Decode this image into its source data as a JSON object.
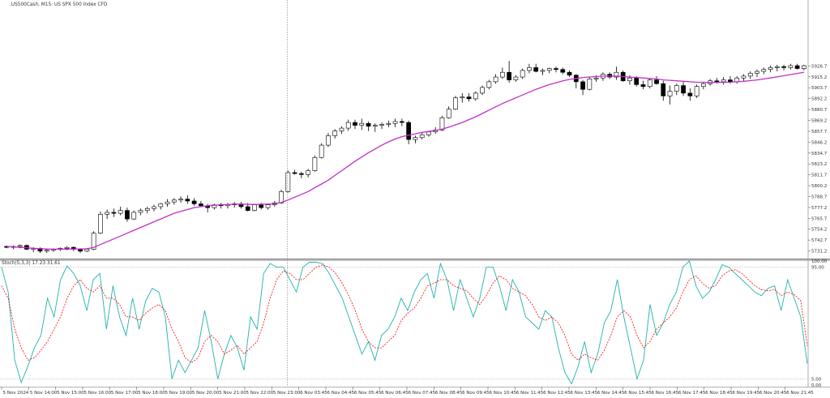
{
  "header": {
    "symbol_label": ".US500Cash, M15:  US SPX 500 Index CFD",
    "indicator_label": "Stoch(5,3,3) 17.23 31.61"
  },
  "colors": {
    "bull_fill": "#ffffff",
    "bear_fill": "#000000",
    "candle_border": "#000000",
    "ma_line": "#c030c8",
    "stoch_main": "#20b2aa",
    "stoch_signal": "#ff0000",
    "grid_sep": "#808080"
  },
  "chart_data": [
    {
      "type": "candlestick",
      "title": ".US500Cash, M15:  US SPX 500 Index CFD",
      "ylim": [
        5724,
        5993
      ],
      "y_ticks": [
        "5926.7",
        "5915.2",
        "5903.7",
        "5892.2",
        "5880.7",
        "5869.2",
        "5857.7",
        "5846.2",
        "5834.7",
        "5823.2",
        "5811.7",
        "5800.2",
        "5788.7",
        "5777.2",
        "5765.7",
        "5754.2",
        "5742.7",
        "5731.2"
      ],
      "x_ticks": [
        "5 Nov 2024",
        "5 Nov 14:00",
        "5 Nov 15:00",
        "5 Nov 16:00",
        "5 Nov 17:00",
        "5 Nov 18:00",
        "5 Nov 19:00",
        "5 Nov 20:00",
        "5 Nov 21:00",
        "5 Nov 22:00",
        "5 Nov 23:00",
        "6 Nov 03:45",
        "6 Nov 04:45",
        "6 Nov 05:45",
        "6 Nov 06:45",
        "6 Nov 07:45",
        "6 Nov 08:45",
        "6 Nov 09:45",
        "6 Nov 10:45",
        "6 Nov 11:45",
        "6 Nov 12:45",
        "6 Nov 13:45",
        "6 Nov 14:45",
        "6 Nov 15:45",
        "6 Nov 16:45",
        "6 Nov 17:45",
        "6 Nov 18:45",
        "6 Nov 19:45",
        "6 Nov 20:45",
        "6 Nov 21:45"
      ],
      "candles": [
        [
          5736,
          5737,
          5734,
          5735
        ],
        [
          5735,
          5737,
          5733,
          5736
        ],
        [
          5736,
          5738,
          5734,
          5737
        ],
        [
          5737,
          5738,
          5732,
          5733
        ],
        [
          5733,
          5735,
          5730,
          5734
        ],
        [
          5734,
          5735,
          5729,
          5731
        ],
        [
          5731,
          5733,
          5729,
          5732
        ],
        [
          5732,
          5734,
          5730,
          5733
        ],
        [
          5733,
          5735,
          5731,
          5734
        ],
        [
          5734,
          5736,
          5732,
          5735
        ],
        [
          5735,
          5736,
          5731,
          5733
        ],
        [
          5733,
          5734,
          5729,
          5731
        ],
        [
          5731,
          5734,
          5730,
          5733
        ],
        [
          5733,
          5752,
          5732,
          5750
        ],
        [
          5750,
          5773,
          5749,
          5770
        ],
        [
          5770,
          5775,
          5765,
          5772
        ],
        [
          5772,
          5776,
          5767,
          5771
        ],
        [
          5771,
          5778,
          5769,
          5774
        ],
        [
          5774,
          5777,
          5762,
          5765
        ],
        [
          5765,
          5774,
          5764,
          5772
        ],
        [
          5772,
          5776,
          5769,
          5774
        ],
        [
          5774,
          5778,
          5771,
          5776
        ],
        [
          5776,
          5780,
          5773,
          5778
        ],
        [
          5778,
          5782,
          5775,
          5781
        ],
        [
          5781,
          5786,
          5778,
          5783
        ],
        [
          5783,
          5787,
          5780,
          5785
        ],
        [
          5785,
          5789,
          5782,
          5786
        ],
        [
          5786,
          5790,
          5781,
          5784
        ],
        [
          5784,
          5787,
          5779,
          5781
        ],
        [
          5781,
          5784,
          5778,
          5779
        ],
        [
          5779,
          5781,
          5772,
          5777
        ],
        [
          5777,
          5781,
          5775,
          5780
        ],
        [
          5780,
          5782,
          5776,
          5779
        ],
        [
          5779,
          5782,
          5776,
          5780
        ],
        [
          5780,
          5783,
          5777,
          5781
        ],
        [
          5781,
          5783,
          5776,
          5778
        ],
        [
          5778,
          5782,
          5773,
          5774
        ],
        [
          5774,
          5781,
          5773,
          5780
        ],
        [
          5780,
          5782,
          5775,
          5777
        ],
        [
          5777,
          5781,
          5775,
          5780
        ],
        [
          5780,
          5784,
          5778,
          5782
        ],
        [
          5782,
          5796,
          5781,
          5794
        ],
        [
          5794,
          5816,
          5793,
          5814
        ],
        [
          5814,
          5817,
          5812,
          5813
        ],
        [
          5813,
          5815,
          5808,
          5812
        ],
        [
          5812,
          5818,
          5809,
          5816
        ],
        [
          5816,
          5832,
          5815,
          5830
        ],
        [
          5830,
          5845,
          5829,
          5843
        ],
        [
          5843,
          5856,
          5841,
          5853
        ],
        [
          5853,
          5860,
          5850,
          5858
        ],
        [
          5858,
          5863,
          5855,
          5861
        ],
        [
          5861,
          5870,
          5858,
          5867
        ],
        [
          5867,
          5870,
          5860,
          5864
        ],
        [
          5864,
          5871,
          5859,
          5866
        ],
        [
          5866,
          5868,
          5858,
          5863
        ],
        [
          5863,
          5866,
          5857,
          5864
        ],
        [
          5864,
          5867,
          5860,
          5865
        ],
        [
          5865,
          5869,
          5862,
          5866
        ],
        [
          5866,
          5871,
          5862,
          5868
        ],
        [
          5868,
          5871,
          5863,
          5867
        ],
        [
          5867,
          5869,
          5844,
          5849
        ],
        [
          5849,
          5853,
          5845,
          5851
        ],
        [
          5851,
          5856,
          5849,
          5854
        ],
        [
          5854,
          5858,
          5852,
          5857
        ],
        [
          5857,
          5862,
          5855,
          5859
        ],
        [
          5859,
          5874,
          5858,
          5872
        ],
        [
          5872,
          5884,
          5871,
          5881
        ],
        [
          5881,
          5895,
          5880,
          5893
        ],
        [
          5893,
          5898,
          5888,
          5894
        ],
        [
          5894,
          5898,
          5889,
          5892
        ],
        [
          5892,
          5900,
          5890,
          5898
        ],
        [
          5898,
          5906,
          5896,
          5904
        ],
        [
          5904,
          5912,
          5902,
          5910
        ],
        [
          5910,
          5918,
          5908,
          5915
        ],
        [
          5915,
          5925,
          5913,
          5920
        ],
        [
          5920,
          5932,
          5909,
          5912
        ],
        [
          5912,
          5917,
          5910,
          5915
        ],
        [
          5915,
          5924,
          5913,
          5922
        ],
        [
          5922,
          5929,
          5919,
          5925
        ],
        [
          5925,
          5929,
          5920,
          5921
        ],
        [
          5921,
          5924,
          5917,
          5922
        ],
        [
          5922,
          5925,
          5919,
          5924
        ],
        [
          5924,
          5926,
          5920,
          5923
        ],
        [
          5923,
          5925,
          5918,
          5920
        ],
        [
          5920,
          5922,
          5915,
          5917
        ],
        [
          5917,
          5918,
          5903,
          5910
        ],
        [
          5910,
          5912,
          5896,
          5902
        ],
        [
          5902,
          5915,
          5901,
          5913
        ],
        [
          5913,
          5917,
          5910,
          5914
        ],
        [
          5914,
          5920,
          5911,
          5918
        ],
        [
          5918,
          5920,
          5913,
          5915
        ],
        [
          5915,
          5926,
          5912,
          5920
        ],
        [
          5920,
          5922,
          5910,
          5911
        ],
        [
          5911,
          5917,
          5907,
          5914
        ],
        [
          5914,
          5916,
          5905,
          5907
        ],
        [
          5907,
          5911,
          5902,
          5905
        ],
        [
          5905,
          5913,
          5903,
          5912
        ],
        [
          5912,
          5916,
          5907,
          5908
        ],
        [
          5908,
          5911,
          5890,
          5895
        ],
        [
          5895,
          5906,
          5886,
          5900
        ],
        [
          5900,
          5908,
          5896,
          5906
        ],
        [
          5906,
          5910,
          5895,
          5898
        ],
        [
          5898,
          5903,
          5890,
          5895
        ],
        [
          5895,
          5907,
          5893,
          5905
        ],
        [
          5905,
          5910,
          5902,
          5908
        ],
        [
          5908,
          5913,
          5906,
          5911
        ],
        [
          5911,
          5914,
          5908,
          5910
        ],
        [
          5910,
          5915,
          5907,
          5912
        ],
        [
          5912,
          5916,
          5908,
          5910
        ],
        [
          5910,
          5916,
          5908,
          5914
        ],
        [
          5914,
          5918,
          5911,
          5916
        ],
        [
          5916,
          5921,
          5913,
          5919
        ],
        [
          5919,
          5923,
          5915,
          5921
        ],
        [
          5921,
          5925,
          5918,
          5923
        ],
        [
          5923,
          5927,
          5920,
          5925
        ],
        [
          5925,
          5928,
          5921,
          5926
        ],
        [
          5926,
          5928,
          5922,
          5925
        ],
        [
          5925,
          5929,
          5923,
          5927
        ],
        [
          5927,
          5929,
          5923,
          5924
        ],
        [
          5924,
          5928,
          5922,
          5927
        ]
      ],
      "ma": [
        5736,
        5735.5,
        5735,
        5734.5,
        5734,
        5733.6,
        5733.3,
        5733.1,
        5733.1,
        5733.2,
        5733.3,
        5733.3,
        5733.5,
        5735,
        5738,
        5741,
        5744,
        5747,
        5750,
        5753,
        5756,
        5759,
        5762,
        5765,
        5768,
        5771,
        5773,
        5775,
        5777,
        5778,
        5779,
        5779.5,
        5780,
        5780.2,
        5780.5,
        5780.6,
        5780.4,
        5780.4,
        5780.5,
        5780.7,
        5781,
        5782.5,
        5785,
        5788,
        5791,
        5794,
        5798,
        5802,
        5806,
        5811,
        5816,
        5821,
        5826,
        5830.5,
        5835,
        5839,
        5843,
        5846.5,
        5849.5,
        5852,
        5853.5,
        5855,
        5856.5,
        5857.5,
        5858.5,
        5860,
        5862,
        5864.5,
        5867,
        5870,
        5873,
        5876.5,
        5880,
        5883.5,
        5887,
        5890,
        5893,
        5896,
        5899,
        5902,
        5904.5,
        5907,
        5909,
        5911,
        5912.5,
        5913.5,
        5914.5,
        5915,
        5915.5,
        5916,
        5916,
        5916,
        5915.5,
        5915,
        5914.5,
        5914,
        5913.5,
        5913,
        5912,
        5911.5,
        5911,
        5910.5,
        5910,
        5909.5,
        5909.5,
        5909.3,
        5909.3,
        5909.4,
        5909.6,
        5910,
        5910.5,
        5911.2,
        5912,
        5913,
        5914,
        5915.2,
        5916.4,
        5917.6,
        5918.8,
        5920
      ],
      "vline_index": 42
    },
    {
      "type": "line",
      "title": "Stoch(5,3,3) 17.23 31.61",
      "ylim": [
        0,
        100
      ],
      "y_ticks": [
        "100.00",
        "95.00",
        "5.00",
        "0.00"
      ],
      "levels": [
        95,
        5
      ],
      "series": [
        {
          "name": "Stoch main",
          "values": [
            95,
            75,
            20,
            2,
            15,
            30,
            40,
            70,
            55,
            85,
            96,
            90,
            80,
            60,
            85,
            90,
            45,
            80,
            55,
            40,
            70,
            45,
            68,
            78,
            75,
            55,
            5,
            20,
            10,
            20,
            30,
            60,
            35,
            5,
            25,
            40,
            30,
            12,
            55,
            45,
            90,
            98,
            95,
            95,
            85,
            75,
            95,
            99,
            99,
            98,
            90,
            80,
            70,
            55,
            40,
            25,
            35,
            20,
            40,
            45,
            55,
            70,
            60,
            75,
            85,
            90,
            70,
            98,
            85,
            60,
            85,
            70,
            55,
            70,
            95,
            95,
            80,
            60,
            85,
            75,
            55,
            50,
            45,
            60,
            55,
            30,
            10,
            1,
            15,
            35,
            10,
            25,
            50,
            60,
            85,
            55,
            30,
            5,
            20,
            65,
            40,
            50,
            65,
            75,
            95,
            100,
            80,
            70,
            75,
            85,
            97,
            95,
            90,
            85,
            80,
            75,
            72,
            78,
            80,
            60,
            85,
            70,
            55,
            17.23
          ]
        },
        {
          "name": "Stoch signal",
          "values": [
            80,
            70,
            45,
            30,
            20,
            22,
            28,
            35,
            45,
            55,
            70,
            80,
            85,
            78,
            75,
            80,
            70,
            70,
            65,
            55,
            55,
            52,
            58,
            62,
            65,
            60,
            45,
            35,
            22,
            18,
            22,
            35,
            40,
            35,
            25,
            28,
            32,
            25,
            30,
            35,
            50,
            70,
            85,
            92,
            90,
            85,
            85,
            90,
            95,
            97,
            95,
            90,
            82,
            72,
            60,
            45,
            35,
            30,
            30,
            35,
            40,
            52,
            58,
            62,
            70,
            80,
            82,
            85,
            85,
            80,
            78,
            76,
            70,
            65,
            72,
            82,
            88,
            85,
            78,
            75,
            72,
            65,
            55,
            52,
            55,
            50,
            40,
            25,
            20,
            25,
            22,
            20,
            28,
            40,
            55,
            60,
            55,
            40,
            30,
            35,
            45,
            50,
            55,
            62,
            75,
            85,
            88,
            82,
            78,
            80,
            88,
            92,
            93,
            90,
            85,
            80,
            77,
            76,
            77,
            72,
            75,
            73,
            68,
            31.61
          ]
        }
      ]
    }
  ]
}
